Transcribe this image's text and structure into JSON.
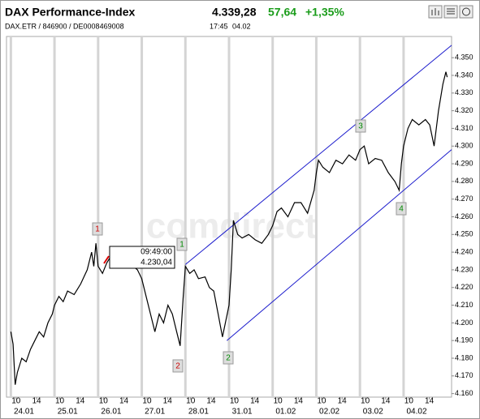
{
  "header": {
    "title": "DAX Performance-Index",
    "last": "4.339,28",
    "change": "57,64",
    "change_pct": "+1,35%",
    "ids": "DAX.ETR / 846900 / DE0008469008",
    "time": "17:45",
    "date": "04.02"
  },
  "chart_data": {
    "type": "line",
    "watermark": "comdirect",
    "x": [
      0,
      0.05,
      0.1,
      0.15,
      0.25,
      0.35,
      0.45,
      0.55,
      0.65,
      0.75,
      0.85,
      0.95,
      1.0,
      1.1,
      1.2,
      1.3,
      1.45,
      1.6,
      1.75,
      1.85,
      1.9,
      1.95,
      2.0,
      2.1,
      2.2,
      2.3,
      2.4,
      2.5,
      2.6,
      2.75,
      2.9,
      3.0,
      3.1,
      3.2,
      3.3,
      3.4,
      3.5,
      3.6,
      3.7,
      3.8,
      3.88,
      3.95,
      4.0,
      4.1,
      4.2,
      4.3,
      4.45,
      4.55,
      4.65,
      4.75,
      4.85,
      5.0,
      5.05,
      5.1,
      5.2,
      5.3,
      5.45,
      5.6,
      5.75,
      5.9,
      6.0,
      6.1,
      6.2,
      6.35,
      6.5,
      6.65,
      6.8,
      6.95,
      7.0,
      7.05,
      7.15,
      7.3,
      7.45,
      7.6,
      7.75,
      7.9,
      8.0,
      8.1,
      8.2,
      8.35,
      8.5,
      8.65,
      8.8,
      8.9,
      8.95,
      9.0,
      9.1,
      9.2,
      9.35,
      9.5,
      9.6,
      9.7,
      9.8,
      9.9,
      9.97,
      10.0
    ],
    "series": [
      {
        "color": "#000000",
        "values": [
          4195,
          4188,
          4165,
          4172,
          4180,
          4178,
          4185,
          4190,
          4195,
          4192,
          4200,
          4205,
          4210,
          4215,
          4212,
          4218,
          4216,
          4222,
          4230,
          4240,
          4232,
          4245,
          4232,
          4228,
          4234,
          4238,
          4235,
          4236,
          4232,
          4233,
          4230,
          4225,
          4215,
          4205,
          4195,
          4205,
          4200,
          4210,
          4205,
          4195,
          4187,
          4215,
          4232,
          4228,
          4230,
          4225,
          4226,
          4220,
          4218,
          4205,
          4192,
          4210,
          4230,
          4258,
          4250,
          4248,
          4250,
          4247,
          4245,
          4250,
          4255,
          4263,
          4265,
          4260,
          4268,
          4268,
          4262,
          4275,
          4285,
          4292,
          4288,
          4285,
          4292,
          4290,
          4295,
          4292,
          4298,
          4300,
          4290,
          4293,
          4292,
          4285,
          4280,
          4275,
          4290,
          4300,
          4310,
          4315,
          4312,
          4315,
          4312,
          4300,
          4320,
          4335,
          4342,
          4339
        ]
      }
    ],
    "trendlines": [
      {
        "color": "#1a1acc",
        "x": [
          4.0,
          10.1
        ],
        "y": [
          4233,
          4357
        ]
      },
      {
        "color": "#1a1acc",
        "x": [
          4.95,
          10.1
        ],
        "y": [
          4190,
          4298
        ]
      }
    ],
    "annotations": [
      {
        "label": "1",
        "color": "#cc0000"
      },
      {
        "label": "2",
        "color": "#cc0000"
      },
      {
        "label": "1",
        "color": "#008800"
      },
      {
        "label": "2",
        "color": "#008800"
      },
      {
        "label": "3",
        "color": "#008800"
      },
      {
        "label": "4",
        "color": "#008800"
      }
    ],
    "tooltip": {
      "time": "09:49:00",
      "value": 4230.04,
      "label": "4.230,04"
    },
    "xlim": [
      -0.1,
      10.1
    ],
    "ylim": [
      4158,
      4362
    ],
    "day_starts": [
      0,
      1,
      2,
      3,
      4,
      5,
      6,
      7,
      8,
      9
    ],
    "xticks": [
      {
        "value": 0.12,
        "label": "10"
      },
      {
        "value": 0.59,
        "label": "14"
      },
      {
        "value": 1.12,
        "label": "10"
      },
      {
        "value": 1.59,
        "label": "14"
      },
      {
        "value": 2.12,
        "label": "10"
      },
      {
        "value": 2.59,
        "label": "14"
      },
      {
        "value": 3.12,
        "label": "10"
      },
      {
        "value": 3.59,
        "label": "14"
      },
      {
        "value": 4.12,
        "label": "10"
      },
      {
        "value": 4.59,
        "label": "14"
      },
      {
        "value": 5.12,
        "label": "10"
      },
      {
        "value": 5.59,
        "label": "14"
      },
      {
        "value": 6.12,
        "label": "10"
      },
      {
        "value": 6.59,
        "label": "14"
      },
      {
        "value": 7.12,
        "label": "10"
      },
      {
        "value": 7.59,
        "label": "14"
      },
      {
        "value": 8.12,
        "label": "10"
      },
      {
        "value": 8.59,
        "label": "14"
      },
      {
        "value": 9.12,
        "label": "10"
      },
      {
        "value": 9.59,
        "label": "14"
      }
    ],
    "date_ticks": [
      {
        "value": 0.3,
        "label": "24.01"
      },
      {
        "value": 1.3,
        "label": "25.01"
      },
      {
        "value": 2.3,
        "label": "26.01"
      },
      {
        "value": 3.3,
        "label": "27.01"
      },
      {
        "value": 4.3,
        "label": "28.01"
      },
      {
        "value": 5.3,
        "label": "31.01"
      },
      {
        "value": 6.3,
        "label": "01.02"
      },
      {
        "value": 7.3,
        "label": "02.02"
      },
      {
        "value": 8.3,
        "label": "03.02"
      },
      {
        "value": 9.3,
        "label": "04.02"
      }
    ],
    "yticks": [
      {
        "value": 4160,
        "label": "4.160"
      },
      {
        "value": 4170,
        "label": "4.170"
      },
      {
        "value": 4180,
        "label": "4.180"
      },
      {
        "value": 4190,
        "label": "4.190"
      },
      {
        "value": 4200,
        "label": "4.200"
      },
      {
        "value": 4210,
        "label": "4.210"
      },
      {
        "value": 4220,
        "label": "4.220"
      },
      {
        "value": 4230,
        "label": "4.230"
      },
      {
        "value": 4240,
        "label": "4.240"
      },
      {
        "value": 4250,
        "label": "4.250"
      },
      {
        "value": 4260,
        "label": "4.260"
      },
      {
        "value": 4270,
        "label": "4.270"
      },
      {
        "value": 4280,
        "label": "4.280"
      },
      {
        "value": 4290,
        "label": "4.290"
      },
      {
        "value": 4300,
        "label": "4.300"
      },
      {
        "value": 4310,
        "label": "4.310"
      },
      {
        "value": 4320,
        "label": "4.320"
      },
      {
        "value": 4330,
        "label": "4.330"
      },
      {
        "value": 4340,
        "label": "4.340"
      },
      {
        "value": 4350,
        "label": "4.350"
      }
    ]
  }
}
